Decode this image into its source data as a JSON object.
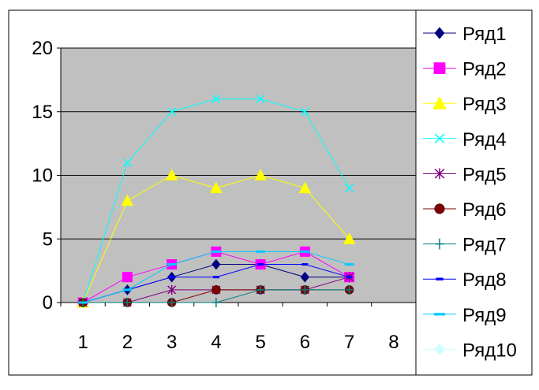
{
  "chart_data": {
    "type": "line",
    "categories": [
      "1",
      "2",
      "3",
      "4",
      "5",
      "6",
      "7",
      "8"
    ],
    "ylim": [
      0,
      20
    ],
    "yticks": [
      0,
      5,
      10,
      15,
      20
    ],
    "grid": "horizontal",
    "plot_background": "#c0c0c0",
    "legend_position": "right",
    "series": [
      {
        "name": "Ряд1",
        "color": "#000080",
        "marker": "diamond",
        "values": [
          0,
          1,
          2,
          3,
          3,
          2,
          2,
          null
        ]
      },
      {
        "name": "Ряд2",
        "color": "#ff00ff",
        "marker": "square",
        "values": [
          0,
          2,
          3,
          4,
          3,
          4,
          2,
          null
        ]
      },
      {
        "name": "Ряд3",
        "color": "#ffff00",
        "marker": "triangle",
        "values": [
          0,
          8,
          10,
          9,
          10,
          9,
          5,
          null
        ]
      },
      {
        "name": "Ряд4",
        "color": "#00ffff",
        "marker": "x",
        "values": [
          0,
          11,
          15,
          16,
          16,
          15,
          9,
          null
        ]
      },
      {
        "name": "Ряд5",
        "color": "#800080",
        "marker": "asterisk",
        "values": [
          0,
          0,
          1,
          1,
          1,
          1,
          2,
          null
        ]
      },
      {
        "name": "Ряд6",
        "color": "#800000",
        "marker": "circle",
        "values": [
          0,
          0,
          0,
          1,
          1,
          1,
          1,
          null
        ]
      },
      {
        "name": "Ряд7",
        "color": "#008080",
        "marker": "plus",
        "values": [
          0,
          0,
          0,
          0,
          1,
          1,
          1,
          null
        ]
      },
      {
        "name": "Ряд8",
        "color": "#0000ff",
        "marker": "dash",
        "values": [
          0,
          1,
          2,
          2,
          3,
          3,
          2,
          null
        ]
      },
      {
        "name": "Ряд9",
        "color": "#00ccff",
        "marker": "longdash",
        "values": [
          0,
          1,
          3,
          4,
          4,
          4,
          3,
          null
        ]
      },
      {
        "name": "Ряд10",
        "color": "#ccffff",
        "marker": "diamond-light",
        "values": [
          null,
          null,
          null,
          null,
          null,
          null,
          null,
          null
        ]
      }
    ]
  }
}
